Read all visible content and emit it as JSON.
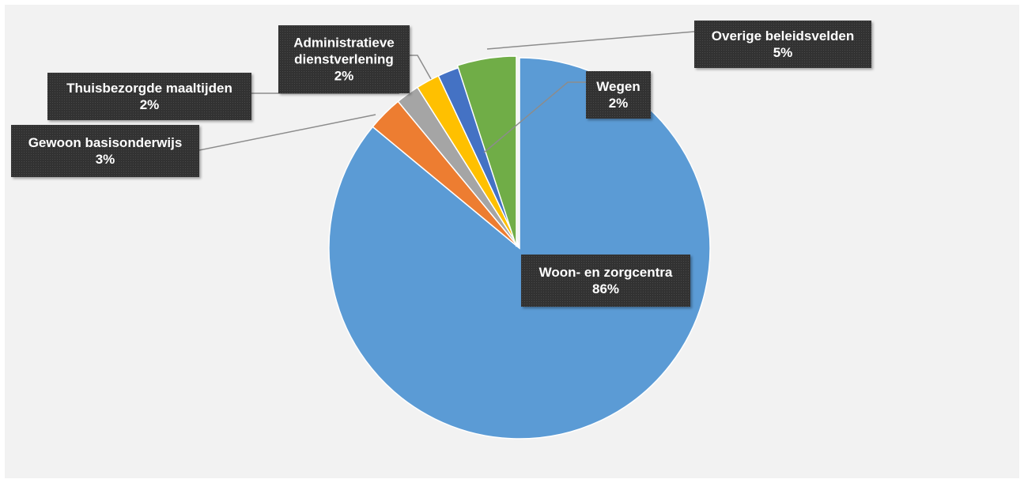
{
  "chart_data": {
    "type": "pie",
    "title": "",
    "slices": [
      {
        "label": "Woon- en zorgcentra",
        "value": 86,
        "display": "86%",
        "color": "#5b9bd5"
      },
      {
        "label": "Gewoon basisonderwijs",
        "value": 3,
        "display": "3%",
        "color": "#ed7d31"
      },
      {
        "label": "Thuisbezorgde maaltijden",
        "value": 2,
        "display": "2%",
        "color": "#a5a5a5"
      },
      {
        "label": "Administratieve dienstverlening",
        "value": 2,
        "display": "2%",
        "color": "#ffc000"
      },
      {
        "label": "Wegen",
        "value": 2,
        "display": "2%",
        "color": "#4472c4"
      },
      {
        "label": "Overige beleidsvelden",
        "value": 5,
        "display": "5%",
        "color": "#70ad47"
      }
    ],
    "label_lines": {
      "Woon- en zorgcentra": [
        "Woon- en zorgcentra"
      ],
      "Gewoon basisonderwijs": [
        "Gewoon basisonderwijs"
      ],
      "Thuisbezorgde maaltijden": [
        "Thuisbezorgde maaltijden"
      ],
      "Administratieve dienstverlening": [
        "Administratieve",
        "dienstverlening"
      ],
      "Wegen": [
        "Wegen"
      ],
      "Overige beleidsvelden": [
        "Overige beleidsvelden"
      ]
    },
    "legend": "none",
    "data_labels": true,
    "leader_lines": true
  }
}
